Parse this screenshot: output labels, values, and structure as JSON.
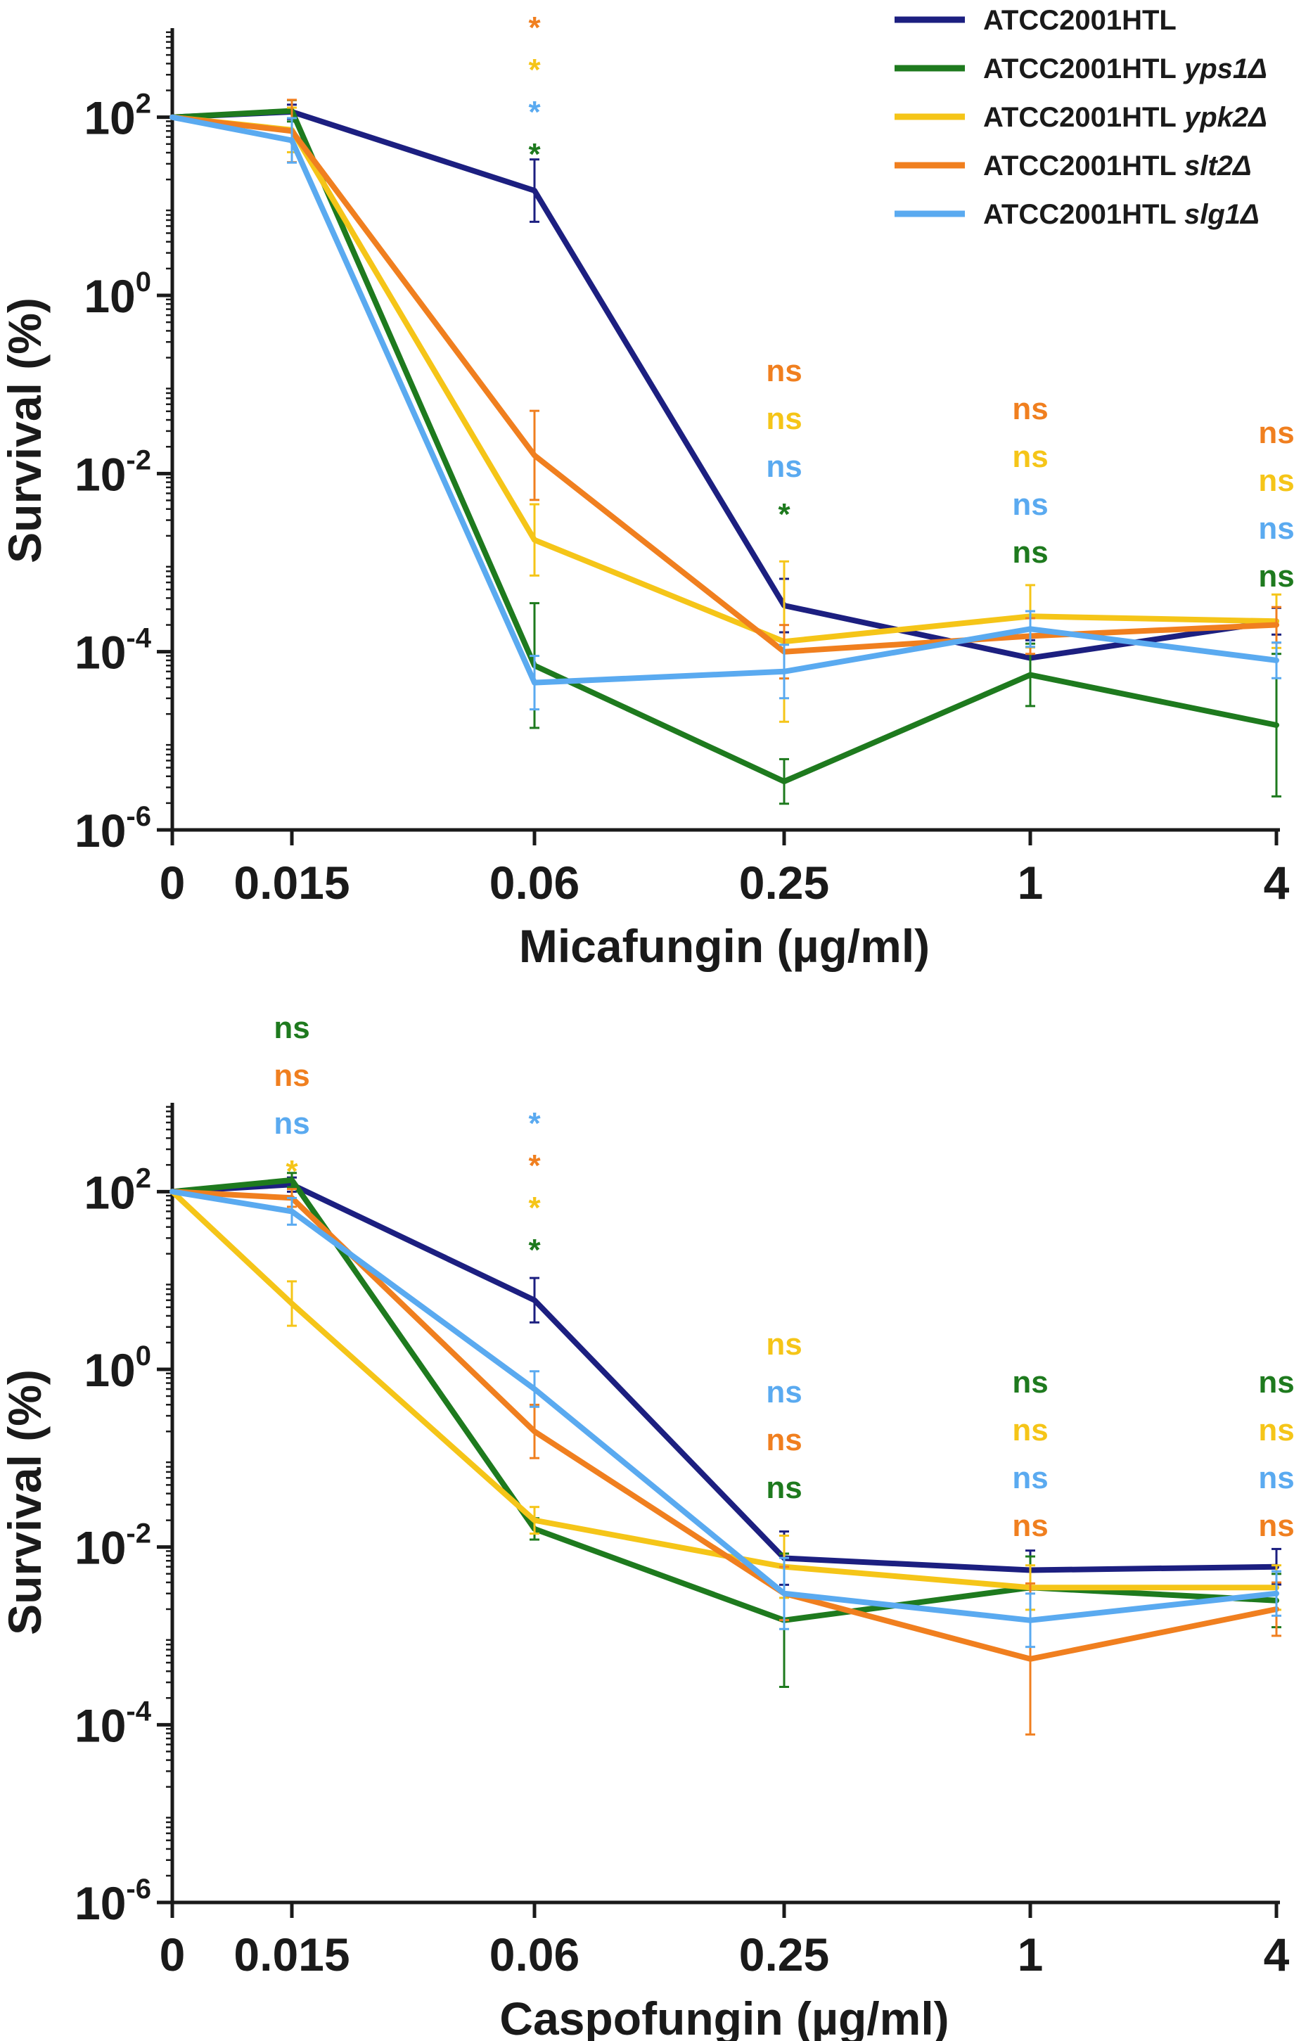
{
  "legend": {
    "entries": [
      {
        "strain": "ATCC2001HTL",
        "mutant": "",
        "color": "#1c1f80"
      },
      {
        "strain": "ATCC2001HTL",
        "mutant": "yps1Δ",
        "color": "#1e7a1e"
      },
      {
        "strain": "ATCC2001HTL",
        "mutant": "ypk2Δ",
        "color": "#f5c518"
      },
      {
        "strain": "ATCC2001HTL",
        "mutant": "slt2Δ",
        "color": "#f07f1f"
      },
      {
        "strain": "ATCC2001HTL",
        "mutant": "slg1Δ",
        "color": "#5aaaf0"
      }
    ]
  },
  "chart_data": [
    {
      "type": "line",
      "title": "",
      "xlabel": "Micafungin (µg/ml)",
      "ylabel": "Survival (%)",
      "categories": [
        "0",
        "0.015",
        "0.06",
        "0.25",
        "1",
        "4"
      ],
      "y_scale": "log10",
      "ylim_log10": [
        -6,
        3
      ],
      "y_ticks": [
        {
          "base": "10",
          "exp": "2",
          "log": 2
        },
        {
          "base": "10",
          "exp": "0",
          "log": 0
        },
        {
          "base": "10",
          "exp": "-2",
          "log": -2
        },
        {
          "base": "10",
          "exp": "-4",
          "log": -4
        },
        {
          "base": "10",
          "exp": "-6",
          "log": -6
        }
      ],
      "series": [
        {
          "name": "ATCC2001HTL",
          "values": [
            100,
            115,
            15,
            0.00033,
            8.5e-05,
            0.00022
          ],
          "err_log": [
            0.05,
            0.08,
            0.35,
            0.3,
            0.2,
            0.15
          ]
        },
        {
          "name": "ATCC2001HTL yps1Δ",
          "values": [
            100,
            118,
            7e-05,
            3.5e-06,
            5.5e-05,
            1.5e-05
          ],
          "err_log": [
            0.05,
            0.12,
            0.7,
            0.25,
            0.35,
            0.8
          ]
        },
        {
          "name": "ATCC2001HTL ypk2Δ",
          "values": [
            100,
            72,
            0.0018,
            0.00013,
            0.00025,
            0.00022
          ],
          "err_log": [
            0.05,
            0.25,
            0.4,
            0.9,
            0.35,
            0.3
          ]
        },
        {
          "name": "ATCC2001HTL slt2Δ",
          "values": [
            100,
            70,
            0.016,
            0.0001,
            0.00015,
            0.0002
          ],
          "err_log": [
            0.05,
            0.35,
            0.5,
            0.3,
            0.2,
            0.2
          ]
        },
        {
          "name": "ATCC2001HTL slg1Δ",
          "values": [
            100,
            55,
            4.5e-05,
            6e-05,
            0.00018,
            8e-05
          ],
          "err_log": [
            0.05,
            0.25,
            0.3,
            0.3,
            0.2,
            0.2
          ]
        }
      ],
      "annotations": [
        {
          "category": "0.06",
          "labels": [
            {
              "text": "*",
              "series": "ATCC2001HTL slt2Δ"
            },
            {
              "text": "*",
              "series": "ATCC2001HTL ypk2Δ"
            },
            {
              "text": "*",
              "series": "ATCC2001HTL slg1Δ"
            },
            {
              "text": "*",
              "series": "ATCC2001HTL yps1Δ"
            }
          ]
        },
        {
          "category": "0.25",
          "labels": [
            {
              "text": "ns",
              "series": "ATCC2001HTL slt2Δ"
            },
            {
              "text": "ns",
              "series": "ATCC2001HTL ypk2Δ"
            },
            {
              "text": "ns",
              "series": "ATCC2001HTL slg1Δ"
            },
            {
              "text": "*",
              "series": "ATCC2001HTL yps1Δ"
            }
          ]
        },
        {
          "category": "1",
          "labels": [
            {
              "text": "ns",
              "series": "ATCC2001HTL slt2Δ"
            },
            {
              "text": "ns",
              "series": "ATCC2001HTL ypk2Δ"
            },
            {
              "text": "ns",
              "series": "ATCC2001HTL slg1Δ"
            },
            {
              "text": "ns",
              "series": "ATCC2001HTL yps1Δ"
            }
          ]
        },
        {
          "category": "4",
          "labels": [
            {
              "text": "ns",
              "series": "ATCC2001HTL slt2Δ"
            },
            {
              "text": "ns",
              "series": "ATCC2001HTL ypk2Δ"
            },
            {
              "text": "ns",
              "series": "ATCC2001HTL slg1Δ"
            },
            {
              "text": "ns",
              "series": "ATCC2001HTL yps1Δ"
            }
          ]
        }
      ]
    },
    {
      "type": "line",
      "title": "",
      "xlabel": "Caspofungin (µg/ml)",
      "ylabel": "Survival (%)",
      "categories": [
        "0",
        "0.015",
        "0.06",
        "0.25",
        "1",
        "4"
      ],
      "y_scale": "log10",
      "ylim_log10": [
        -6,
        3
      ],
      "y_ticks": [
        {
          "base": "10",
          "exp": "2",
          "log": 2
        },
        {
          "base": "10",
          "exp": "0",
          "log": 0
        },
        {
          "base": "10",
          "exp": "-2",
          "log": -2
        },
        {
          "base": "10",
          "exp": "-4",
          "log": -4
        },
        {
          "base": "10",
          "exp": "-6",
          "log": -6
        }
      ],
      "series": [
        {
          "name": "ATCC2001HTL",
          "values": [
            100,
            120,
            6,
            0.0075,
            0.0055,
            0.006
          ],
          "err_log": [
            0.05,
            0.08,
            0.25,
            0.3,
            0.22,
            0.2
          ]
        },
        {
          "name": "ATCC2001HTL yps1Δ",
          "values": [
            100,
            135,
            0.016,
            0.0015,
            0.0035,
            0.0025
          ],
          "err_log": [
            0.05,
            0.08,
            0.12,
            0.75,
            0.35,
            0.3
          ]
        },
        {
          "name": "ATCC2001HTL ypk2Δ",
          "values": [
            100,
            5.5,
            0.02,
            0.006,
            0.0035,
            0.0035
          ],
          "err_log": [
            0.05,
            0.25,
            0.15,
            0.35,
            0.25,
            0.25
          ]
        },
        {
          "name": "ATCC2001HTL slt2Δ",
          "values": [
            100,
            85,
            0.2,
            0.003,
            0.00055,
            0.002
          ],
          "err_log": [
            0.05,
            0.1,
            0.3,
            0.3,
            0.85,
            0.3
          ]
        },
        {
          "name": "ATCC2001HTL slg1Δ",
          "values": [
            100,
            60,
            0.6,
            0.003,
            0.0015,
            0.003
          ],
          "err_log": [
            0.05,
            0.15,
            0.2,
            0.4,
            0.3,
            0.25
          ]
        }
      ],
      "annotations": [
        {
          "category": "0.015",
          "labels": [
            {
              "text": "ns",
              "series": "ATCC2001HTL yps1Δ"
            },
            {
              "text": "ns",
              "series": "ATCC2001HTL slt2Δ"
            },
            {
              "text": "ns",
              "series": "ATCC2001HTL slg1Δ"
            },
            {
              "text": "*",
              "series": "ATCC2001HTL ypk2Δ"
            }
          ]
        },
        {
          "category": "0.06",
          "labels": [
            {
              "text": "*",
              "series": "ATCC2001HTL slg1Δ"
            },
            {
              "text": "*",
              "series": "ATCC2001HTL slt2Δ"
            },
            {
              "text": "*",
              "series": "ATCC2001HTL ypk2Δ"
            },
            {
              "text": "*",
              "series": "ATCC2001HTL yps1Δ"
            }
          ]
        },
        {
          "category": "0.25",
          "labels": [
            {
              "text": "ns",
              "series": "ATCC2001HTL ypk2Δ"
            },
            {
              "text": "ns",
              "series": "ATCC2001HTL slg1Δ"
            },
            {
              "text": "ns",
              "series": "ATCC2001HTL slt2Δ"
            },
            {
              "text": "ns",
              "series": "ATCC2001HTL yps1Δ"
            }
          ]
        },
        {
          "category": "1",
          "labels": [
            {
              "text": "ns",
              "series": "ATCC2001HTL yps1Δ"
            },
            {
              "text": "ns",
              "series": "ATCC2001HTL ypk2Δ"
            },
            {
              "text": "ns",
              "series": "ATCC2001HTL slg1Δ"
            },
            {
              "text": "ns",
              "series": "ATCC2001HTL slt2Δ"
            }
          ]
        },
        {
          "category": "4",
          "labels": [
            {
              "text": "ns",
              "series": "ATCC2001HTL yps1Δ"
            },
            {
              "text": "ns",
              "series": "ATCC2001HTL ypk2Δ"
            },
            {
              "text": "ns",
              "series": "ATCC2001HTL slg1Δ"
            },
            {
              "text": "ns",
              "series": "ATCC2001HTL slt2Δ"
            }
          ]
        }
      ]
    }
  ]
}
